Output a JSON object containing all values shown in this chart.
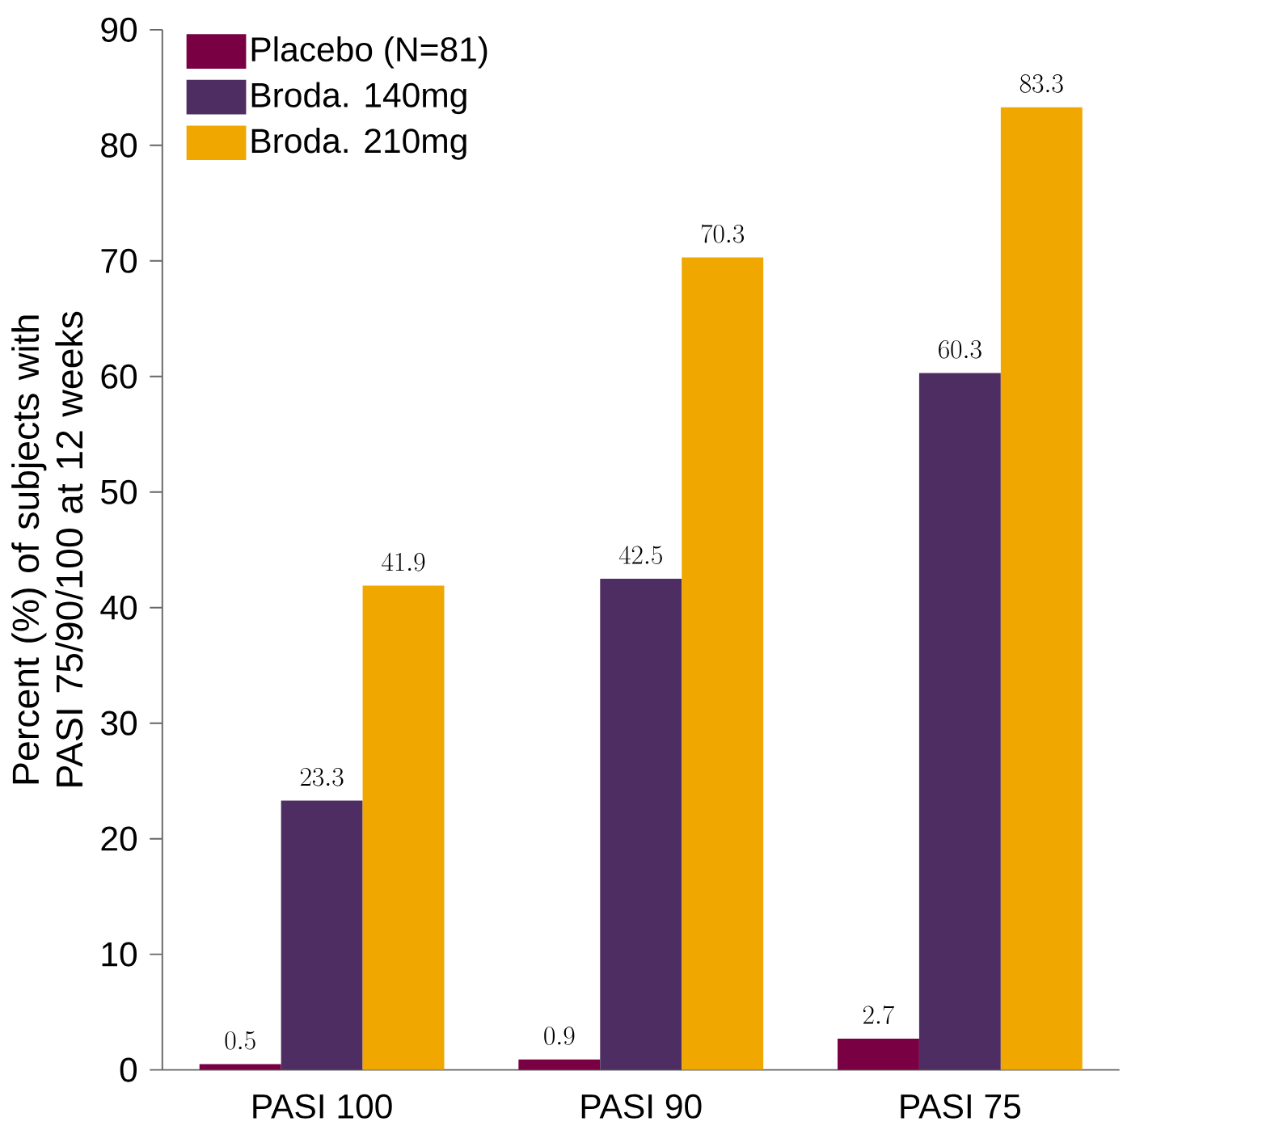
{
  "chart_data": {
    "type": "bar",
    "ylabel": "Percent (%) of subjects with PASI 75/90/100 at 12 weeks",
    "categories": [
      "PASI 100",
      "PASI 90",
      "PASI 75"
    ],
    "series": [
      {
        "name": "Placebo (N=81)",
        "color": "#7a0044",
        "values": [
          0.5,
          0.9,
          2.7
        ]
      },
      {
        "name": "Broda. 140mg",
        "color": "#4e2d62",
        "values": [
          23.3,
          42.5,
          60.3
        ]
      },
      {
        "name": "Broda. 210mg",
        "color": "#f0a800",
        "values": [
          41.9,
          70.3,
          83.3
        ]
      }
    ],
    "ylim": [
      0,
      90
    ],
    "yticks": [
      0,
      10,
      20,
      30,
      40,
      50,
      60,
      70,
      80,
      90
    ],
    "data_labels": true,
    "legend": "top left",
    "grid": false
  }
}
